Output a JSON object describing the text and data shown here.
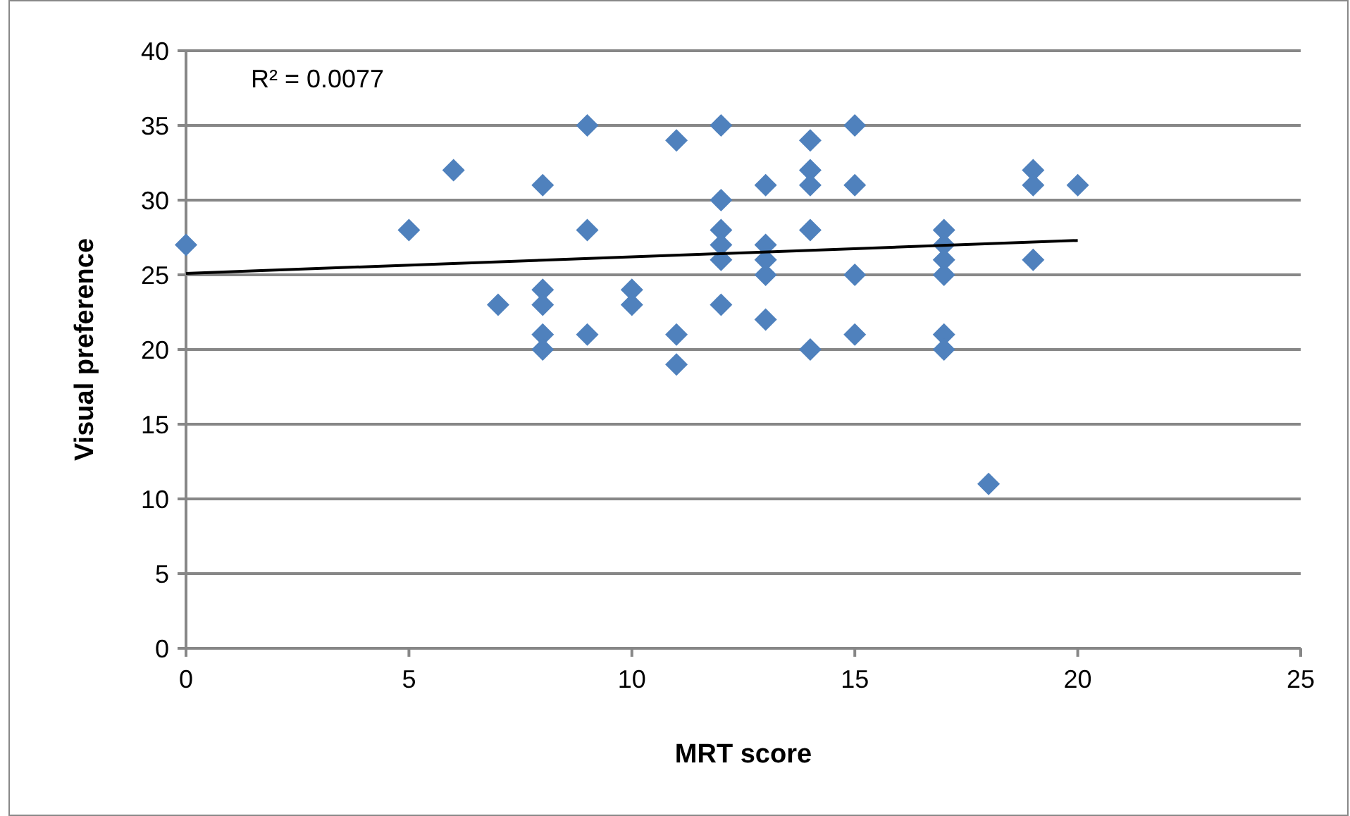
{
  "chart_data": {
    "type": "scatter",
    "xlabel": "MRT score",
    "ylabel": "Visual preference",
    "xlim": [
      0,
      25
    ],
    "xticks": [
      0,
      5,
      10,
      15,
      20,
      25
    ],
    "ylim": [
      0,
      40
    ],
    "yticks": [
      0,
      5,
      10,
      15,
      20,
      25,
      30,
      35,
      40
    ],
    "grid": "y",
    "marker": "diamond",
    "annotations": [
      "R² = 0.0077"
    ],
    "series": [
      {
        "color": "#4f81bd",
        "x": [
          0,
          5,
          6,
          7,
          8,
          8,
          8,
          8,
          8,
          9,
          9,
          9,
          10,
          10,
          11,
          11,
          11,
          12,
          12,
          12,
          12,
          12,
          12,
          13,
          13,
          13,
          13,
          13,
          14,
          14,
          14,
          14,
          14,
          15,
          15,
          15,
          15,
          17,
          17,
          17,
          17,
          17,
          17,
          18,
          19,
          19,
          19,
          20
        ],
        "values": [
          27,
          28,
          32,
          23,
          31,
          24,
          23,
          21,
          20,
          35,
          28,
          21,
          24,
          23,
          34,
          21,
          19,
          35,
          30,
          28,
          27,
          26,
          23,
          31,
          27,
          26,
          25,
          22,
          34,
          32,
          31,
          28,
          20,
          35,
          31,
          25,
          21,
          28,
          27,
          26,
          25,
          21,
          20,
          11,
          32,
          31,
          26,
          31
        ]
      },
      {
        "type": "line",
        "color": "#000000",
        "marker": "none",
        "x": [
          0,
          20
        ],
        "values": [
          25.1,
          27.3
        ]
      }
    ]
  }
}
